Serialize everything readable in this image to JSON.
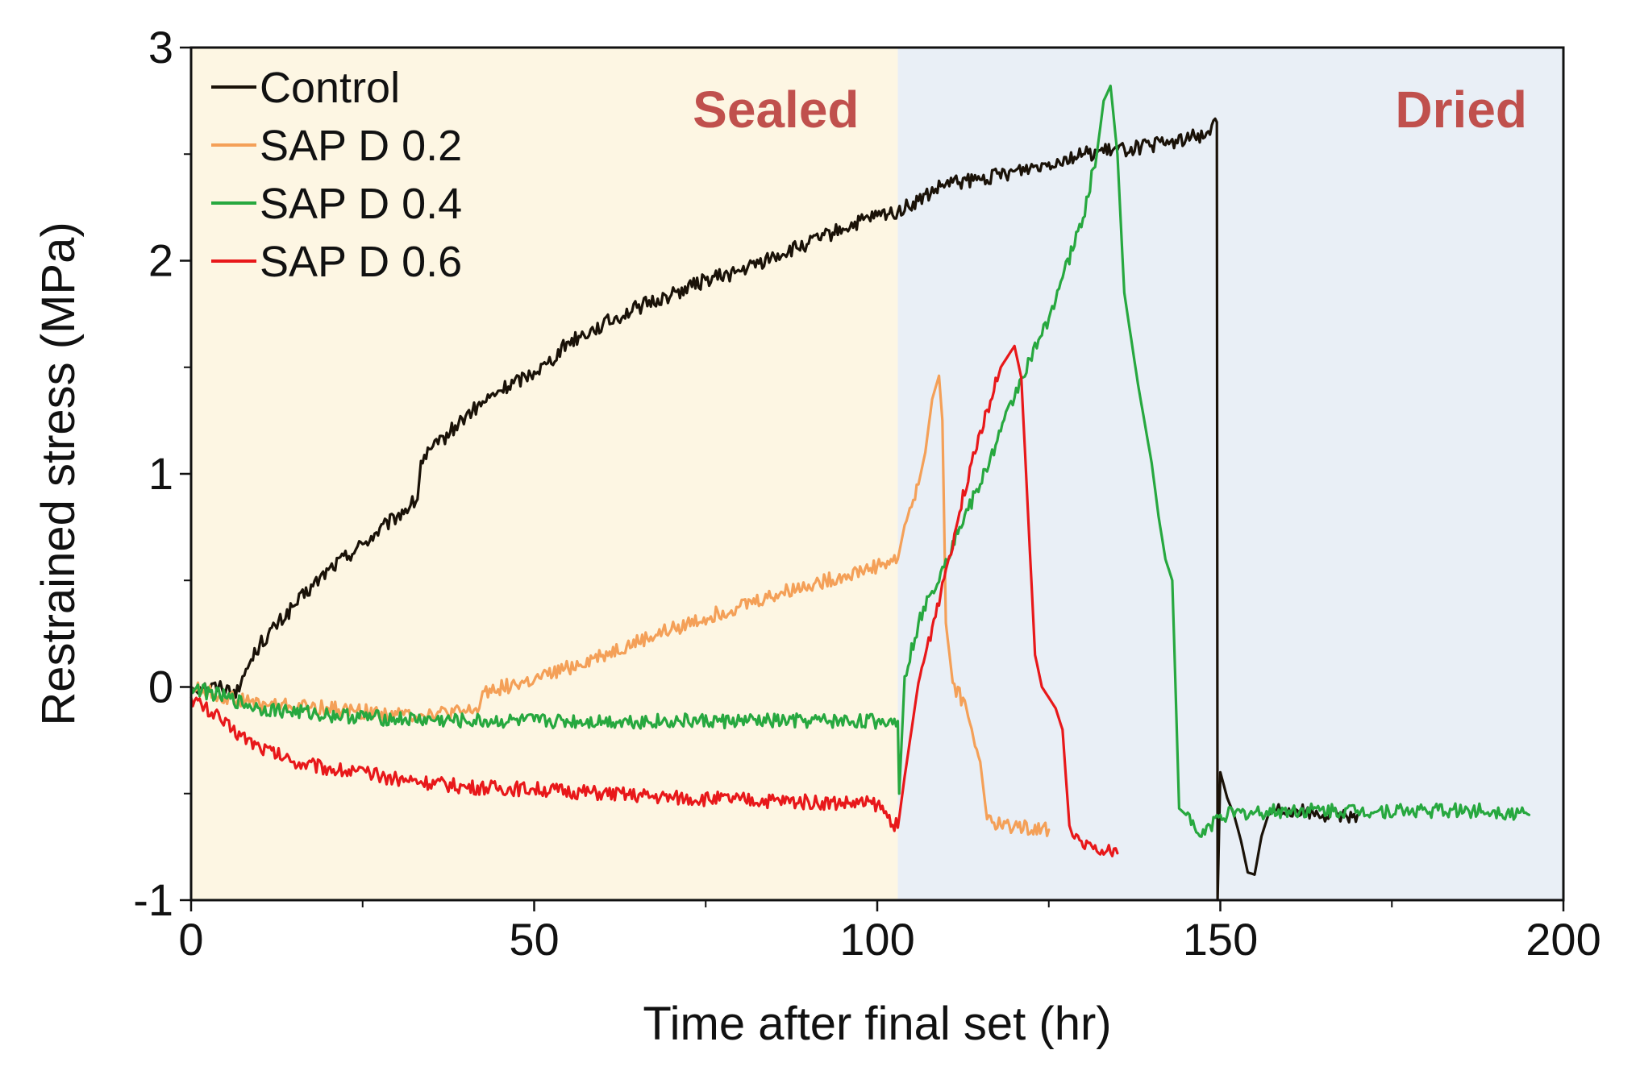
{
  "chart_data": {
    "type": "line",
    "title": "",
    "xlabel": "Time after final set (hr)",
    "ylabel": "Restrained stress (MPa)",
    "xlim": [
      0,
      200
    ],
    "ylim": [
      -1,
      3
    ],
    "x_ticks": [
      0,
      50,
      100,
      150,
      200
    ],
    "x_tick_labels": [
      "0",
      "50",
      "100",
      "150",
      "200"
    ],
    "x_minor_ticks": [
      25,
      75,
      125,
      175
    ],
    "y_ticks": [
      -1,
      0,
      1,
      2,
      3
    ],
    "y_tick_labels": [
      "-1",
      "0",
      "1",
      "2",
      "3"
    ],
    "y_minor_ticks": [
      -0.5,
      0.5,
      1.5,
      2.5
    ],
    "grid": false,
    "legend_position": "top-left",
    "regions": [
      {
        "name": "Sealed",
        "x_range": [
          0,
          103
        ],
        "fill": "#fdf6e3",
        "label_color": "#c0504d"
      },
      {
        "name": "Dried",
        "x_range": [
          103,
          200
        ],
        "fill": "#e9eff6",
        "label_color": "#c0504d"
      }
    ],
    "series": [
      {
        "name": "Control",
        "color": "#1a1208",
        "x": [
          0,
          4,
          7,
          7.5,
          10,
          15,
          20,
          25,
          30,
          33,
          33.5,
          36,
          40,
          45,
          50,
          52,
          55,
          60,
          65,
          70,
          75,
          80,
          85,
          90,
          95,
          100,
          103,
          106,
          110,
          115,
          120,
          125,
          130,
          135,
          140,
          145,
          148,
          149.5,
          149.6,
          150,
          151,
          152,
          153,
          154,
          155,
          156,
          157,
          158,
          160,
          165,
          170
        ],
        "y": [
          0.0,
          0.0,
          -0.02,
          0.05,
          0.2,
          0.38,
          0.55,
          0.67,
          0.8,
          0.88,
          1.06,
          1.14,
          1.27,
          1.39,
          1.48,
          1.52,
          1.62,
          1.7,
          1.78,
          1.84,
          1.91,
          1.95,
          2.02,
          2.08,
          2.15,
          2.21,
          2.23,
          2.28,
          2.36,
          2.38,
          2.42,
          2.46,
          2.5,
          2.52,
          2.54,
          2.57,
          2.6,
          2.65,
          -1.0,
          -0.4,
          -0.52,
          -0.6,
          -0.72,
          -0.87,
          -0.88,
          -0.7,
          -0.6,
          -0.58,
          -0.57,
          -0.6,
          -0.6
        ]
      },
      {
        "name": "SAP D 0.2",
        "color": "#f4a058",
        "x": [
          0,
          5,
          10,
          20,
          30,
          40,
          42,
          42.5,
          50,
          60,
          70,
          80,
          90,
          95,
          100,
          103,
          104,
          106,
          107,
          108,
          109,
          109.5,
          110,
          111,
          113,
          115,
          116,
          118,
          120,
          125
        ],
        "y": [
          0.0,
          -0.05,
          -0.08,
          -0.1,
          -0.13,
          -0.12,
          -0.1,
          -0.02,
          0.03,
          0.15,
          0.27,
          0.38,
          0.48,
          0.52,
          0.57,
          0.6,
          0.76,
          0.95,
          1.1,
          1.35,
          1.46,
          1.25,
          0.3,
          0.02,
          -0.1,
          -0.35,
          -0.62,
          -0.65,
          -0.65,
          -0.67
        ]
      },
      {
        "name": "SAP D 0.4",
        "color": "#27a83f",
        "x": [
          0,
          5,
          10,
          20,
          30,
          40,
          50,
          60,
          70,
          80,
          90,
          100,
          103,
          103.2,
          104,
          106,
          108,
          110,
          112,
          115,
          118,
          121,
          124,
          127,
          130,
          132,
          133,
          134,
          135,
          136,
          138,
          140,
          141,
          142,
          143,
          144,
          145,
          147,
          150,
          160,
          170,
          180,
          190,
          195
        ],
        "y": [
          0.0,
          -0.05,
          -0.1,
          -0.13,
          -0.15,
          -0.16,
          -0.16,
          -0.16,
          -0.16,
          -0.16,
          -0.16,
          -0.16,
          -0.16,
          -0.5,
          0.05,
          0.3,
          0.45,
          0.6,
          0.75,
          0.95,
          1.2,
          1.45,
          1.65,
          1.92,
          2.2,
          2.5,
          2.75,
          2.82,
          2.5,
          1.85,
          1.42,
          1.05,
          0.8,
          0.6,
          0.5,
          -0.57,
          -0.6,
          -0.7,
          -0.6,
          -0.58,
          -0.58,
          -0.58,
          -0.58,
          -0.6
        ]
      },
      {
        "name": "SAP D 0.6",
        "color": "#e8181a",
        "x": [
          0,
          3,
          6,
          10,
          15,
          20,
          30,
          40,
          50,
          60,
          70,
          80,
          90,
          100,
          103,
          104,
          106,
          108,
          110,
          112,
          114,
          116,
          118,
          119,
          120,
          121,
          122,
          123,
          124,
          125,
          126,
          127,
          128,
          128.5,
          130,
          132,
          135
        ],
        "y": [
          -0.05,
          -0.12,
          -0.2,
          -0.28,
          -0.35,
          -0.38,
          -0.43,
          -0.47,
          -0.48,
          -0.5,
          -0.52,
          -0.53,
          -0.54,
          -0.55,
          -0.66,
          -0.42,
          0.02,
          0.28,
          0.55,
          0.82,
          1.1,
          1.3,
          1.5,
          1.55,
          1.6,
          1.45,
          0.8,
          0.15,
          0.0,
          -0.05,
          -0.1,
          -0.2,
          -0.65,
          -0.7,
          -0.75,
          -0.77,
          -0.78
        ]
      }
    ]
  }
}
